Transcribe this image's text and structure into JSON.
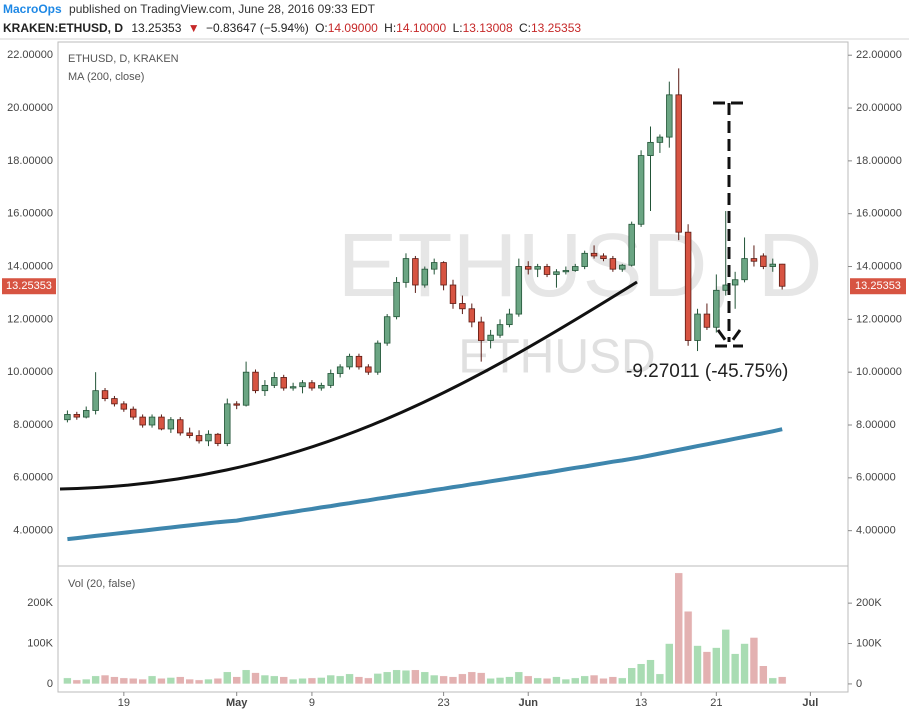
{
  "header": {
    "author": "MacroOps",
    "published": "published on TradingView.com, June 28, 2016 09:33 EDT"
  },
  "symbol_bar": {
    "symbol": "KRAKEN:ETHUSD, D",
    "last": "13.25353",
    "arrow": "▼",
    "change": "−0.83647 (−5.94%)",
    "items": [
      {
        "key": "O:",
        "value": "14.09000"
      },
      {
        "key": "H:",
        "value": "14.10000"
      },
      {
        "key": "L:",
        "value": "13.13008"
      },
      {
        "key": "C:",
        "value": "13.25353"
      }
    ]
  },
  "chart_data": {
    "type": "candlestick",
    "title": "ETHUSD, D, KRAKEN",
    "watermark": "ETHUSD, D",
    "watermark2": "ETHUSD",
    "annotation": "-9.27011 (-45.75%)",
    "up_color": "#6ba583",
    "down_color": "#d75442",
    "x": [
      "04-13",
      "04-14",
      "04-15",
      "04-16",
      "04-17",
      "04-18",
      "04-19",
      "04-20",
      "04-21",
      "04-22",
      "04-23",
      "04-24",
      "04-25",
      "04-26",
      "04-27",
      "04-28",
      "04-29",
      "04-30",
      "05-01",
      "05-02",
      "05-03",
      "05-04",
      "05-05",
      "05-06",
      "05-07",
      "05-08",
      "05-09",
      "05-10",
      "05-11",
      "05-12",
      "05-13",
      "05-14",
      "05-15",
      "05-16",
      "05-17",
      "05-18",
      "05-19",
      "05-20",
      "05-21",
      "05-22",
      "05-23",
      "05-24",
      "05-25",
      "05-26",
      "05-27",
      "05-28",
      "05-29",
      "05-30",
      "05-31",
      "06-01",
      "06-02",
      "06-03",
      "06-04",
      "06-05",
      "06-06",
      "06-07",
      "06-08",
      "06-09",
      "06-10",
      "06-11",
      "06-12",
      "06-13",
      "06-14",
      "06-15",
      "06-16",
      "06-17",
      "06-18",
      "06-19",
      "06-20",
      "06-21",
      "06-22",
      "06-23",
      "06-24",
      "06-25",
      "06-26",
      "06-27",
      "06-28"
    ],
    "open": [
      8.2,
      8.4,
      8.3,
      8.55,
      9.3,
      9.0,
      8.8,
      8.6,
      8.3,
      8.0,
      8.3,
      7.85,
      8.2,
      7.7,
      7.6,
      7.4,
      7.65,
      7.3,
      8.8,
      8.75,
      10.0,
      9.3,
      9.5,
      9.8,
      9.4,
      9.45,
      9.6,
      9.4,
      9.5,
      9.95,
      10.2,
      10.6,
      10.2,
      10.0,
      11.1,
      12.1,
      13.4,
      14.3,
      13.3,
      13.9,
      14.15,
      13.3,
      12.6,
      12.4,
      11.9,
      11.2,
      11.4,
      11.8,
      12.2,
      14.0,
      13.9,
      14.0,
      13.7,
      13.8,
      13.85,
      14.0,
      14.5,
      14.4,
      14.3,
      13.9,
      14.05,
      15.6,
      18.2,
      18.7,
      18.9,
      20.5,
      15.3,
      11.2,
      12.2,
      11.7,
      13.1,
      13.3,
      13.5,
      14.3,
      14.4,
      14.0,
      14.09
    ],
    "high": [
      8.55,
      8.5,
      8.7,
      10.0,
      9.4,
      9.1,
      8.9,
      8.7,
      8.4,
      8.4,
      8.4,
      8.3,
      8.3,
      7.9,
      7.8,
      7.8,
      7.7,
      9.0,
      8.9,
      10.4,
      10.1,
      9.7,
      10.0,
      9.9,
      9.6,
      9.7,
      9.7,
      9.6,
      10.1,
      10.3,
      10.7,
      10.7,
      10.3,
      11.2,
      12.2,
      13.6,
      14.5,
      14.4,
      14.0,
      14.3,
      14.2,
      13.5,
      12.9,
      12.6,
      12.1,
      11.6,
      12.0,
      12.4,
      14.3,
      14.2,
      14.1,
      14.1,
      13.9,
      14.0,
      14.1,
      14.6,
      14.8,
      14.5,
      14.4,
      14.1,
      15.7,
      18.4,
      19.3,
      19.0,
      21.0,
      21.5,
      15.6,
      12.4,
      12.6,
      13.7,
      16.1,
      13.8,
      15.1,
      14.8,
      14.5,
      14.3,
      14.1
    ],
    "low": [
      8.1,
      8.2,
      8.25,
      8.4,
      8.9,
      8.7,
      8.5,
      8.2,
      7.9,
      7.9,
      7.8,
      7.7,
      7.6,
      7.5,
      7.3,
      7.2,
      7.2,
      7.2,
      8.6,
      8.7,
      9.2,
      9.1,
      9.4,
      9.3,
      9.3,
      9.2,
      9.3,
      9.3,
      9.4,
      9.8,
      10.1,
      10.1,
      9.9,
      9.9,
      11.0,
      12.0,
      13.2,
      13.0,
      13.2,
      13.7,
      13.1,
      12.4,
      12.2,
      11.7,
      10.4,
      10.9,
      11.3,
      11.7,
      12.1,
      13.7,
      13.6,
      13.6,
      13.2,
      13.7,
      13.8,
      13.9,
      14.3,
      14.2,
      13.8,
      13.8,
      14.0,
      15.5,
      16.1,
      18.3,
      18.5,
      15.0,
      11.0,
      10.8,
      11.6,
      11.5,
      12.9,
      12.4,
      13.4,
      14.0,
      13.9,
      13.8,
      13.13008
    ],
    "close": [
      8.4,
      8.3,
      8.55,
      9.3,
      9.0,
      8.8,
      8.6,
      8.3,
      8.0,
      8.3,
      7.85,
      8.2,
      7.7,
      7.6,
      7.4,
      7.65,
      7.3,
      8.8,
      8.75,
      10.0,
      9.3,
      9.5,
      9.8,
      9.4,
      9.45,
      9.6,
      9.4,
      9.5,
      9.95,
      10.2,
      10.6,
      10.2,
      10.0,
      11.1,
      12.1,
      13.4,
      14.3,
      13.3,
      13.9,
      14.15,
      13.3,
      12.6,
      12.4,
      11.9,
      11.2,
      11.4,
      11.8,
      12.2,
      14.0,
      13.9,
      14.0,
      13.7,
      13.8,
      13.85,
      14.0,
      14.5,
      14.4,
      14.3,
      13.9,
      14.05,
      15.6,
      18.2,
      18.7,
      18.9,
      20.5,
      15.3,
      11.2,
      12.2,
      11.7,
      13.1,
      13.3,
      13.5,
      14.3,
      14.2,
      14.0,
      14.09,
      13.25353
    ],
    "xlim": [
      "04-12",
      "07-05"
    ],
    "xticks": [
      {
        "value": "04-19",
        "label": "19"
      },
      {
        "value": "05-01",
        "label": "May"
      },
      {
        "value": "05-09",
        "label": "9"
      },
      {
        "value": "05-23",
        "label": "23"
      },
      {
        "value": "06-01",
        "label": "Jun"
      },
      {
        "value": "06-13",
        "label": "13"
      },
      {
        "value": "06-21",
        "label": "21"
      },
      {
        "value": "07-01",
        "label": "Jul"
      }
    ],
    "ylim": [
      2.7,
      22.5
    ],
    "yticks": [
      {
        "value": 4,
        "label": "4.00000"
      },
      {
        "value": 6,
        "label": "6.00000"
      },
      {
        "value": 8,
        "label": "8.00000"
      },
      {
        "value": 10,
        "label": "10.00000"
      },
      {
        "value": 12,
        "label": "12.00000"
      },
      {
        "value": 14,
        "label": "14.00000"
      },
      {
        "value": 16,
        "label": "16.00000"
      },
      {
        "value": 18,
        "label": "18.00000"
      },
      {
        "value": 20,
        "label": "20.00000"
      },
      {
        "value": 22,
        "label": "22.00000"
      }
    ],
    "ma": {
      "name": "MA (200, close)",
      "color": "#3e86ad",
      "values": [
        3.68,
        3.72,
        3.76,
        3.8,
        3.84,
        3.88,
        3.92,
        3.96,
        4.0,
        4.04,
        4.08,
        4.12,
        4.16,
        4.2,
        4.24,
        4.28,
        4.32,
        4.35,
        4.38,
        4.44,
        4.49,
        4.55,
        4.6,
        4.66,
        4.71,
        4.77,
        4.82,
        4.88,
        4.93,
        4.99,
        5.04,
        5.1,
        5.15,
        5.21,
        5.26,
        5.32,
        5.37,
        5.43,
        5.48,
        5.54,
        5.59,
        5.65,
        5.7,
        5.76,
        5.81,
        5.87,
        5.92,
        5.98,
        6.03,
        6.09,
        6.15,
        6.2,
        6.26,
        6.32,
        6.38,
        6.43,
        6.49,
        6.55,
        6.61,
        6.66,
        6.72,
        6.78,
        6.85,
        6.92,
        6.99,
        7.06,
        7.13,
        7.2,
        7.27,
        7.34,
        7.41,
        7.48,
        7.55,
        7.62,
        7.69,
        7.76,
        7.84
      ]
    },
    "volume": {
      "name": "Vol (20, false)",
      "up_color": "#a9dcb3",
      "down_color": "#e3b1b1",
      "values": [
        15000,
        10000,
        12000,
        20000,
        22000,
        18000,
        15000,
        14000,
        12000,
        20000,
        14000,
        16000,
        18000,
        12000,
        10000,
        12000,
        14000,
        30000,
        18000,
        35000,
        28000,
        22000,
        20000,
        18000,
        12000,
        14000,
        15000,
        16000,
        22000,
        20000,
        25000,
        18000,
        15000,
        26000,
        30000,
        35000,
        34000,
        35000,
        30000,
        22000,
        20000,
        18000,
        25000,
        30000,
        28000,
        14000,
        16000,
        18000,
        30000,
        20000,
        15000,
        14000,
        18000,
        12000,
        15000,
        20000,
        22000,
        14000,
        18000,
        15000,
        40000,
        50000,
        60000,
        25000,
        100000,
        275000,
        180000,
        95000,
        80000,
        90000,
        135000,
        75000,
        100000,
        115000,
        45000,
        15000,
        18000
      ],
      "ylim": [
        -20000,
        287000
      ],
      "yticks": [
        0,
        {
          "value": 100000,
          "label": "100K"
        },
        {
          "value": 200000,
          "label": "200K"
        }
      ]
    }
  }
}
